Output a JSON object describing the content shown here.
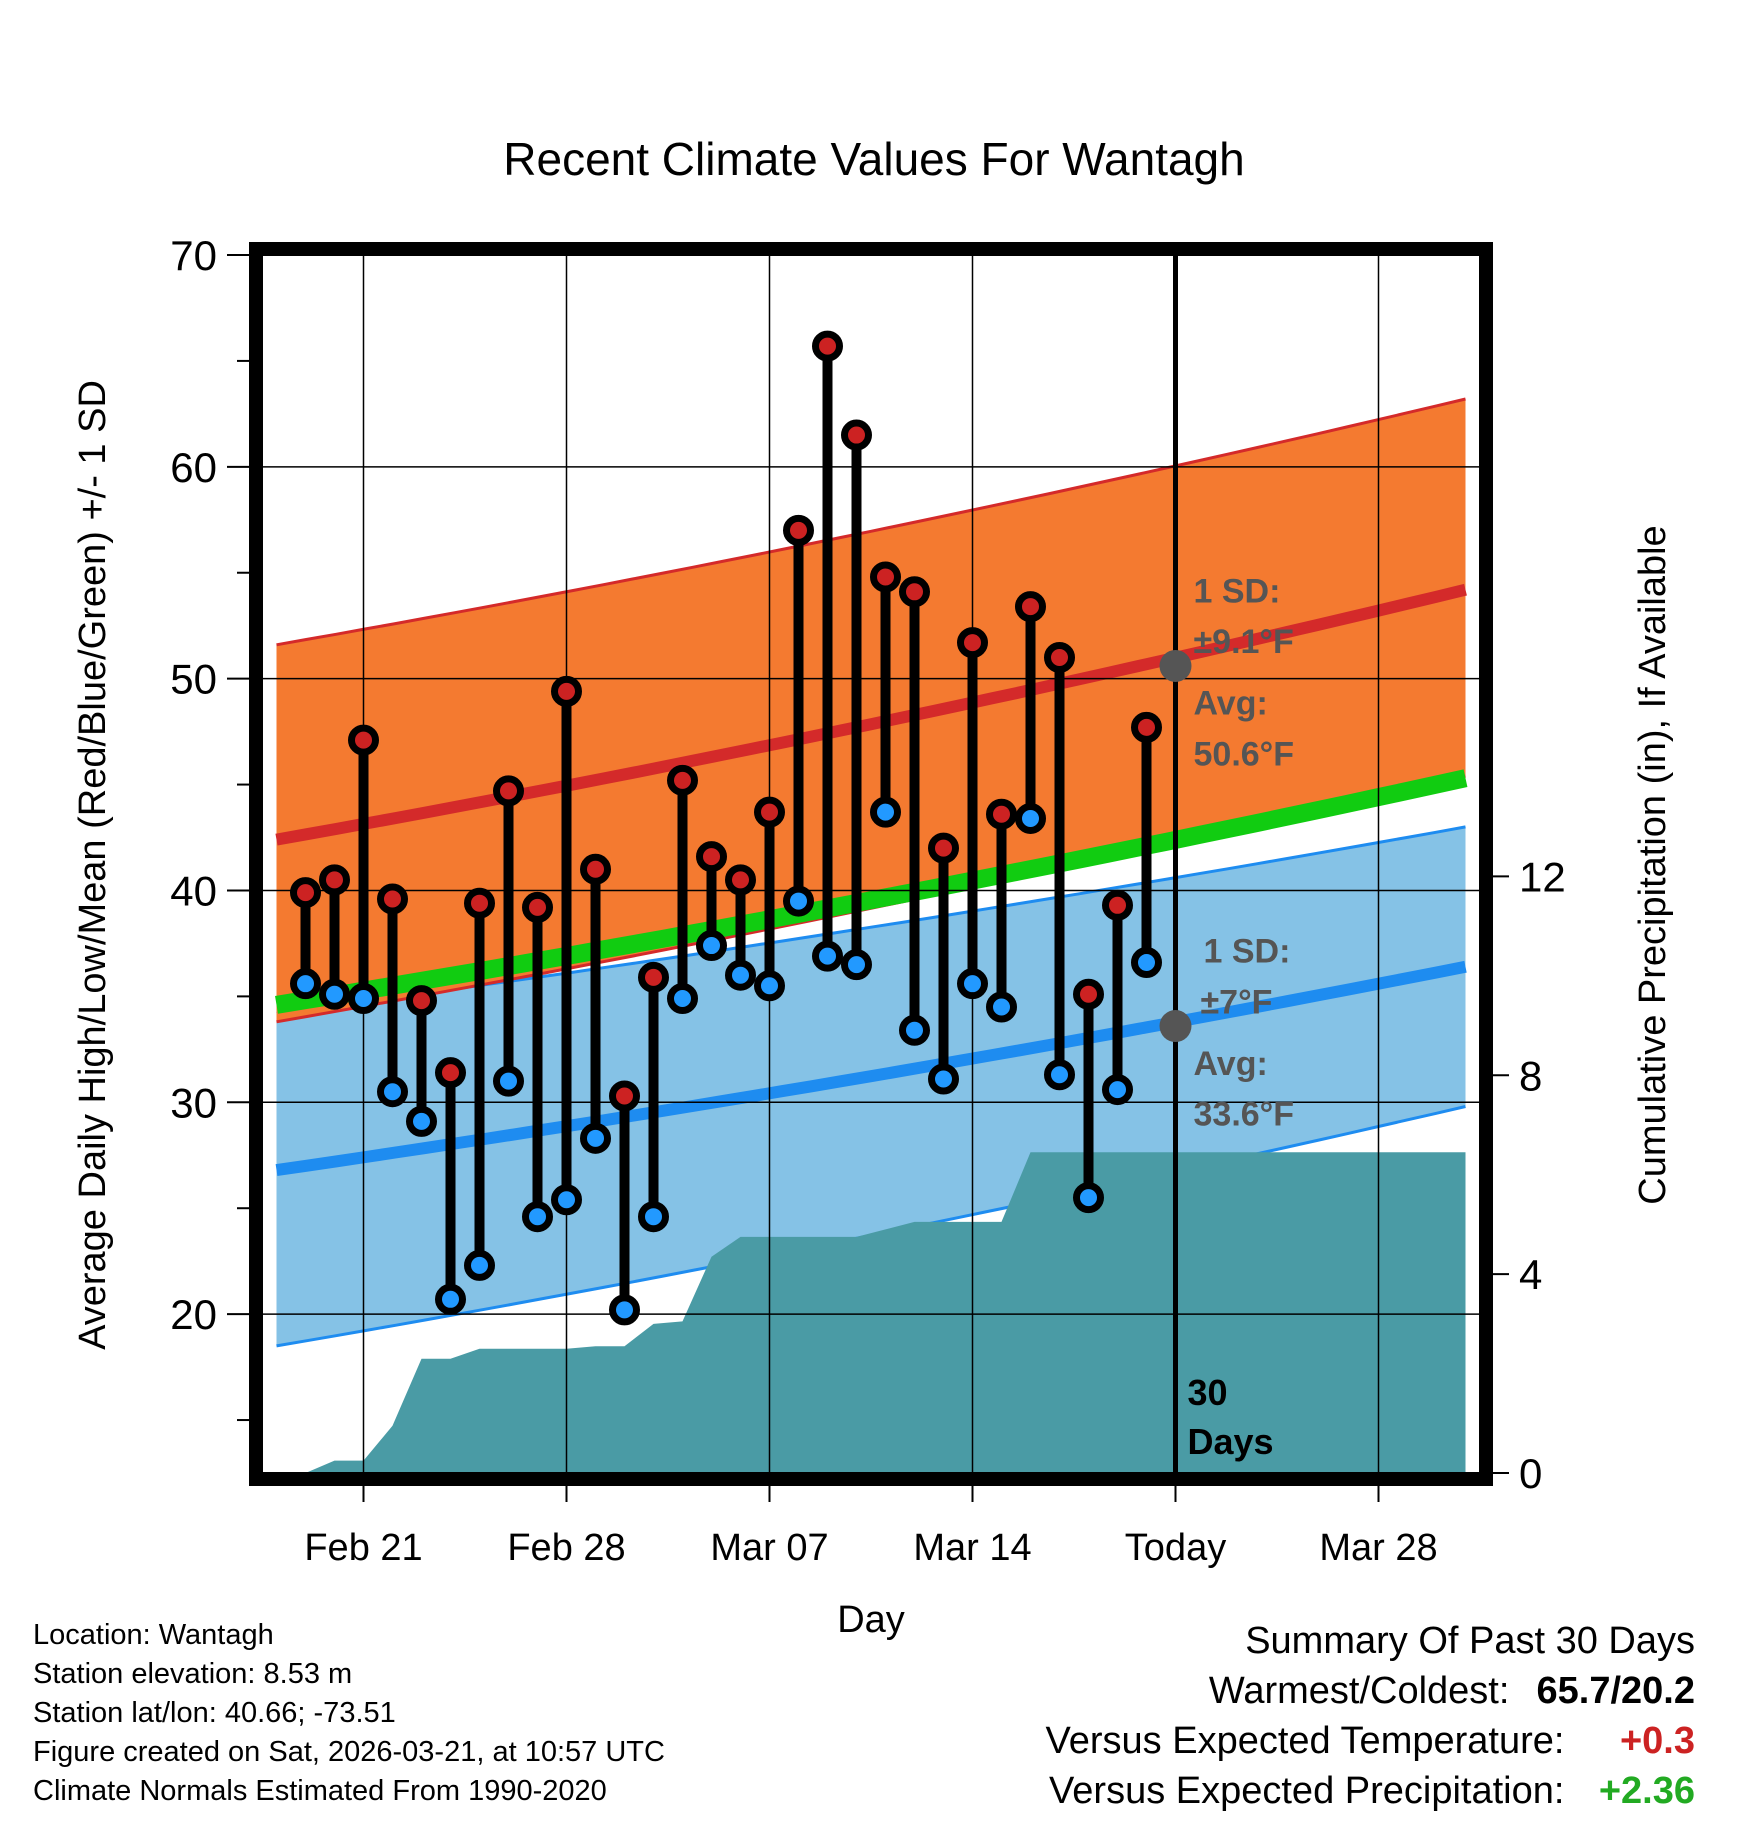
{
  "chart_data": {
    "type": "line",
    "title": "Recent Climate Values For Wantagh",
    "xlabel": "Day",
    "ylabel": "Average Daily High/Low/Mean (Red/Blue/Green) +/- 1 SD",
    "y2label": "Cumulative Precipitation (in), If Available",
    "ylim": [
      12.5,
      70
    ],
    "y2lim": [
      0,
      24.5
    ],
    "xlim": [
      -0.5,
      41.5
    ],
    "yticks": [
      "20",
      "30",
      "40",
      "50",
      "60",
      "70"
    ],
    "y2ticks": [
      "0",
      "4",
      "8",
      "12"
    ],
    "y2tick_values": [
      0,
      4,
      8,
      12
    ],
    "xticks": [
      {
        "day": 3,
        "label": "Feb 21"
      },
      {
        "day": 10,
        "label": "Feb 28"
      },
      {
        "day": 17,
        "label": "Mar 07"
      },
      {
        "day": 24,
        "label": "Mar 14"
      },
      {
        "day": 31,
        "label": "Today"
      },
      {
        "day": 38,
        "label": "Mar 28"
      }
    ],
    "today_day": 31,
    "days_label": "30",
    "days_label2": "Days",
    "days": [
      1,
      2,
      3,
      4,
      5,
      6,
      7,
      8,
      9,
      10,
      11,
      12,
      13,
      14,
      15,
      16,
      17,
      18,
      19,
      20,
      21,
      22,
      23,
      24,
      25,
      26,
      27,
      28,
      29,
      30
    ],
    "highs": [
      39.9,
      40.5,
      47.1,
      39.6,
      34.8,
      31.4,
      39.4,
      44.7,
      39.2,
      49.4,
      41.0,
      30.3,
      35.9,
      45.2,
      41.6,
      40.5,
      43.7,
      57.0,
      65.7,
      61.5,
      54.8,
      54.1,
      42.0,
      51.7,
      43.6,
      53.4,
      51.0,
      35.1,
      39.3,
      47.7
    ],
    "lows": [
      35.6,
      35.1,
      34.9,
      30.5,
      29.1,
      20.7,
      22.3,
      31.0,
      24.6,
      25.4,
      28.3,
      20.2,
      24.6,
      34.9,
      37.4,
      36.0,
      35.5,
      39.5,
      36.9,
      36.5,
      43.7,
      33.4,
      31.1,
      35.6,
      34.5,
      43.4,
      31.3,
      25.5,
      30.6,
      36.6
    ],
    "normals": {
      "day_start": 0,
      "day_end": 41,
      "high_avg": [
        42.4,
        54.2
      ],
      "high_sd_upper": [
        51.6,
        63.2
      ],
      "high_sd_lower": [
        33.8,
        45.4
      ],
      "low_avg": [
        26.8,
        36.4
      ],
      "low_sd_upper": [
        34.2,
        43.0
      ],
      "low_sd_lower": [
        18.5,
        29.8
      ],
      "mean_avg": [
        34.6,
        45.3
      ]
    },
    "precip": {
      "days": [
        1,
        2,
        3,
        4,
        5,
        6,
        7,
        8,
        9,
        10,
        11,
        12,
        13,
        14,
        15,
        16,
        17,
        18,
        19,
        20,
        21,
        22,
        23,
        24,
        25,
        26,
        27,
        28,
        29,
        30,
        31,
        32,
        33,
        34,
        35,
        36,
        37,
        38,
        39,
        40,
        41
      ],
      "values": [
        0.0,
        0.25,
        0.25,
        0.95,
        2.3,
        2.3,
        2.5,
        2.5,
        2.5,
        2.5,
        2.55,
        2.55,
        3.0,
        3.05,
        4.35,
        4.75,
        4.75,
        4.75,
        4.75,
        4.75,
        4.9,
        5.05,
        5.05,
        5.05,
        5.05,
        6.45,
        6.45,
        6.45,
        6.45,
        6.45,
        6.45,
        6.45,
        6.45,
        6.45,
        6.45,
        6.45,
        6.45,
        6.45,
        6.45,
        6.45,
        6.45
      ]
    },
    "annotations": {
      "high_sd": {
        "line1": "1 SD:",
        "line2": "±9.1°F"
      },
      "high_avg": {
        "line1": "Avg:",
        "line2": "50.6°F",
        "value": 50.6
      },
      "low_sd": {
        "line1": "1 SD:",
        "line2": "±7°F"
      },
      "low_avg": {
        "line1": "Avg:",
        "line2": "33.6°F",
        "value": 33.6
      }
    },
    "colors": {
      "high": "#cc2222",
      "low": "#2299ff",
      "high_band": "#f47a30",
      "low_band": "#85c2e6",
      "mean": "#11cc11",
      "precip": "#4a9ba5",
      "high_line": "#d42a2a",
      "low_line": "#1e8cf0"
    }
  },
  "footer": {
    "location": "Location: Wantagh",
    "elevation": "Station elevation: 8.53 m",
    "latlon": "Station lat/lon: 40.66; -73.51",
    "created": "Figure created on Sat, 2026-03-21, at 10:57 UTC",
    "normals": "Climate Normals Estimated From 1990-2020"
  },
  "summary": {
    "title": "Summary Of Past 30 Days",
    "warm_cold_label": "Warmest/Coldest:",
    "warm_cold_value": "65.7/20.2",
    "temp_label": "Versus Expected Temperature:",
    "temp_value": "+0.3",
    "temp_color": "#cc2222",
    "precip_label": "Versus Expected Precipitation:",
    "precip_value": "+2.36",
    "precip_color": "#22aa22"
  }
}
